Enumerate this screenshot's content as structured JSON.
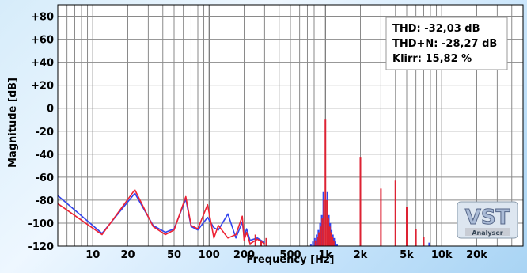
{
  "chart_data": {
    "type": "line",
    "xlabel": "Frequency [Hz]",
    "ylabel": "Magnitude [dB]",
    "xscale": "log",
    "xlim": [
      5,
      50000
    ],
    "ylim": [
      -120,
      90
    ],
    "grid": true,
    "y_ticks": [
      {
        "value": 80,
        "label": "+80"
      },
      {
        "value": 60,
        "label": "+60"
      },
      {
        "value": 40,
        "label": "+40"
      },
      {
        "value": 20,
        "label": "+20"
      },
      {
        "value": 0,
        "label": "0"
      },
      {
        "value": -20,
        "label": "-20"
      },
      {
        "value": -40,
        "label": "-40"
      },
      {
        "value": -60,
        "label": "-60"
      },
      {
        "value": -80,
        "label": "-80"
      },
      {
        "value": -100,
        "label": "-100"
      },
      {
        "value": -120,
        "label": "-120"
      }
    ],
    "x_ticks": [
      {
        "value": 10,
        "label": "10"
      },
      {
        "value": 20,
        "label": "20"
      },
      {
        "value": 50,
        "label": "50"
      },
      {
        "value": 100,
        "label": "100"
      },
      {
        "value": 200,
        "label": "200"
      },
      {
        "value": 500,
        "label": "500"
      },
      {
        "value": 1000,
        "label": "1k"
      },
      {
        "value": 2000,
        "label": "2k"
      },
      {
        "value": 5000,
        "label": "5k"
      },
      {
        "value": 10000,
        "label": "10k"
      },
      {
        "value": 20000,
        "label": "20k"
      }
    ],
    "series": [
      {
        "color": "#3344ee",
        "x": [
          5,
          12,
          23,
          33,
          42,
          50,
          63,
          70,
          80,
          97,
          110,
          120,
          145,
          170,
          193,
          200,
          210,
          225,
          260,
          300
        ],
        "y": [
          -76,
          -109,
          -74,
          -102,
          -108,
          -105,
          -79,
          -103,
          -106,
          -95,
          -104,
          -106,
          -92,
          -113,
          -99,
          -112,
          -105,
          -115,
          -113,
          -117
        ]
      },
      {
        "color": "#ee2233",
        "x": [
          5,
          12,
          23,
          33,
          42,
          50,
          63,
          70,
          80,
          97,
          110,
          120,
          145,
          170,
          193,
          200,
          210,
          225,
          260,
          300
        ],
        "y": [
          -83,
          -110,
          -71,
          -103,
          -110,
          -106,
          -77,
          -102,
          -105,
          -84,
          -113,
          -102,
          -113,
          -110,
          -94,
          -115,
          -108,
          -118,
          -114,
          -118
        ]
      }
    ],
    "spikes": [
      {
        "x": 1000,
        "y": -10,
        "color": "#dd2233"
      },
      {
        "x": 2000,
        "y": -43,
        "color": "#dd2233"
      },
      {
        "x": 3000,
        "y": -70,
        "color": "#dd2233"
      },
      {
        "x": 4000,
        "y": -63,
        "color": "#dd2233"
      },
      {
        "x": 5000,
        "y": -86,
        "color": "#dd2233"
      },
      {
        "x": 6000,
        "y": -105,
        "color": "#dd2233"
      },
      {
        "x": 7000,
        "y": -112,
        "color": "#dd2233"
      },
      {
        "x": 250,
        "y": -110,
        "color": "#dd2233"
      },
      {
        "x": 280,
        "y": -115,
        "color": "#dd2233"
      },
      {
        "x": 310,
        "y": -113,
        "color": "#dd2233"
      },
      {
        "x": 960,
        "y": -73,
        "color": "#3344ee"
      },
      {
        "x": 1040,
        "y": -73,
        "color": "#3344ee"
      },
      {
        "x": 930,
        "y": -93,
        "color": "#3344ee"
      },
      {
        "x": 1070,
        "y": -93,
        "color": "#3344ee"
      },
      {
        "x": 900,
        "y": -100,
        "color": "#3344ee"
      },
      {
        "x": 1100,
        "y": -100,
        "color": "#3344ee"
      },
      {
        "x": 870,
        "y": -106,
        "color": "#3344ee"
      },
      {
        "x": 1130,
        "y": -106,
        "color": "#3344ee"
      },
      {
        "x": 840,
        "y": -110,
        "color": "#3344ee"
      },
      {
        "x": 1160,
        "y": -110,
        "color": "#3344ee"
      },
      {
        "x": 810,
        "y": -113,
        "color": "#3344ee"
      },
      {
        "x": 1190,
        "y": -113,
        "color": "#3344ee"
      },
      {
        "x": 780,
        "y": -116,
        "color": "#3344ee"
      },
      {
        "x": 1220,
        "y": -116,
        "color": "#3344ee"
      },
      {
        "x": 750,
        "y": -118,
        "color": "#3344ee"
      },
      {
        "x": 1260,
        "y": -118,
        "color": "#3344ee"
      },
      {
        "x": 970,
        "y": -80,
        "color": "#dd2233"
      },
      {
        "x": 1030,
        "y": -80,
        "color": "#dd2233"
      },
      {
        "x": 940,
        "y": -96,
        "color": "#dd2233"
      },
      {
        "x": 1060,
        "y": -96,
        "color": "#dd2233"
      },
      {
        "x": 910,
        "y": -103,
        "color": "#dd2233"
      },
      {
        "x": 1090,
        "y": -103,
        "color": "#dd2233"
      },
      {
        "x": 880,
        "y": -108,
        "color": "#dd2233"
      },
      {
        "x": 1120,
        "y": -108,
        "color": "#dd2233"
      },
      {
        "x": 850,
        "y": -112,
        "color": "#dd2233"
      },
      {
        "x": 1150,
        "y": -112,
        "color": "#dd2233"
      },
      {
        "x": 820,
        "y": -115,
        "color": "#dd2233"
      },
      {
        "x": 1180,
        "y": -115,
        "color": "#dd2233"
      },
      {
        "x": 7800,
        "y": -117,
        "color": "#3344ee"
      }
    ],
    "stats": [
      {
        "label": "THD:",
        "value": "-32,03 dB"
      },
      {
        "label": "THD+N:",
        "value": "-28,27 dB"
      },
      {
        "label": "Klirr:",
        "value": "15,82 %"
      }
    ],
    "logo": {
      "text": "VST",
      "subtext": "Analyser"
    }
  }
}
